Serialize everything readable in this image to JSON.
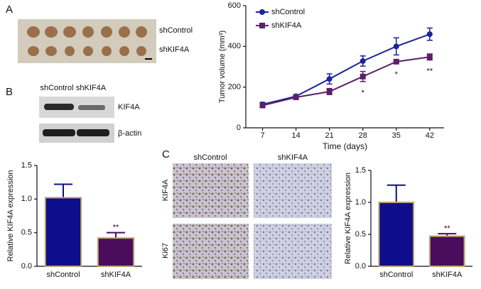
{
  "panel_a": {
    "letter": "A",
    "rows": [
      "shControl",
      "shKIF4A"
    ]
  },
  "panel_b": {
    "letter": "B",
    "columns": [
      "shControl",
      "shKIF4A"
    ],
    "bands": [
      "KIF4A",
      "β-actin"
    ]
  },
  "panel_c": {
    "letter": "C",
    "columns": [
      "shControl",
      "shKIF4A"
    ],
    "rows": [
      "KIF4A",
      "Ki67"
    ]
  },
  "chart_data": [
    {
      "type": "line",
      "x_label": "Time (days)",
      "y_label": "Tumor volume (mm³)",
      "x": [
        7,
        14,
        21,
        28,
        35,
        42
      ],
      "xlim": [
        3.5,
        45
      ],
      "xticks": [
        7,
        14,
        21,
        28,
        35,
        42
      ],
      "ylim": [
        0,
        600
      ],
      "yticks": [
        0,
        200,
        400,
        600
      ],
      "legend": "top-left",
      "series": [
        {
          "name": "shControl",
          "color": "#1c2596",
          "values": [
            115,
            155,
            240,
            328,
            400,
            460
          ],
          "errors": [
            10,
            8,
            25,
            25,
            42,
            30
          ]
        },
        {
          "name": "shKIF4A",
          "color": "#5b1f6b",
          "values": [
            110,
            150,
            178,
            252,
            325,
            348
          ],
          "errors": [
            10,
            8,
            15,
            25,
            8,
            15
          ]
        }
      ],
      "annotations": [
        {
          "text": "*",
          "x": 28
        },
        {
          "text": "*",
          "x": 35
        },
        {
          "text": "**",
          "x": 42
        }
      ]
    },
    {
      "type": "bar",
      "y_label": "Relative KIF4A expression",
      "categories": [
        "shControl",
        "shKIF4A"
      ],
      "values": [
        1.02,
        0.42
      ],
      "errors": [
        0.2,
        0.08
      ],
      "colors": [
        "#0e0e8c",
        "#4a0c5c"
      ],
      "edge_color": "#b8a56c",
      "ylim": [
        0,
        1.5
      ],
      "yticks": [
        {
          "value": 0,
          "label": "0.0"
        },
        0.5,
        {
          "value": 1,
          "label": "1.0"
        },
        1.5
      ],
      "annotation": "**"
    },
    {
      "type": "bar",
      "y_label": "Relative KIF4A expression",
      "categories": [
        "shControl",
        "shKIF4A"
      ],
      "values": [
        1.0,
        0.47
      ],
      "errors": [
        0.27,
        0.04
      ],
      "colors": [
        "#0e0e8c",
        "#4a0c5c"
      ],
      "edge_color": "#b8a56c",
      "ylim": [
        0,
        1.5
      ],
      "yticks": [
        {
          "value": 0,
          "label": "0.0"
        },
        0.5,
        {
          "value": 1,
          "label": "1.0"
        },
        1.5
      ],
      "annotation": "**"
    }
  ]
}
